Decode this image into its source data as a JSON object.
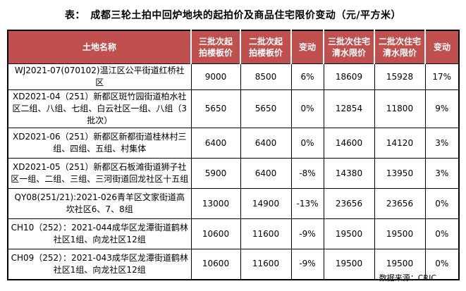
{
  "title": "表：　成都三轮土拍中回炉地块的起拍价及商品住宅限价变动（元/平方米）",
  "source": "数据来源：CRIC",
  "colors": {
    "header_bg": "#C0504D",
    "header_text": "#FFFFFF",
    "border": "#000000",
    "title_color": "#000000",
    "source_color": "#000000"
  },
  "table": {
    "columns": [
      "土地名称",
      "三批次起\n拍楼板价",
      "二批次起\n拍楼板价",
      "变动",
      "三批次住宅\n清水限价",
      "二批次住宅\n清水限价",
      "变动"
    ],
    "rows": [
      [
        "WJ2021-07(070102)温江区公平街道红桥社区",
        "9000",
        "8500",
        "6%",
        "18609",
        "15928",
        "17%"
      ],
      [
        "XD2021-04（251）新都区斑竹园街道柏水社区二组、八组、七组、白云社区一组、八组（3批次）",
        "5650",
        "5650",
        "0%",
        "12854",
        "11800",
        "9%"
      ],
      [
        "XD2021-06（251）新都区新都街道桂林村三组、四组、五组、村集体",
        "6400",
        "6400",
        "0%",
        "14600",
        "14120",
        "3%"
      ],
      [
        "XD2021-05（251）新都区石板滩街道狮子社区一组、二组、三组、三河街道回龙社区十五组",
        "5900",
        "6400",
        "-8%",
        "14380",
        "13950",
        "3%"
      ],
      [
        "QY08(251/21):2021-026青羊区文家街道高坎社区6、7、8组",
        "13000",
        "14900",
        "-13%",
        "23656",
        "23656",
        "0%"
      ],
      [
        "CH10（252）：2021-044成华区龙潭街道鹤林社区1组、向龙社区12组",
        "10600",
        "11600",
        "-9%",
        "19500",
        "19500",
        "0%"
      ],
      [
        "CH09（252）：2021-043成华区龙潭街道鹤林社区1组、向龙社区12组",
        "10600",
        "11600",
        "-9%",
        "19500",
        "19500",
        "0%"
      ]
    ]
  }
}
